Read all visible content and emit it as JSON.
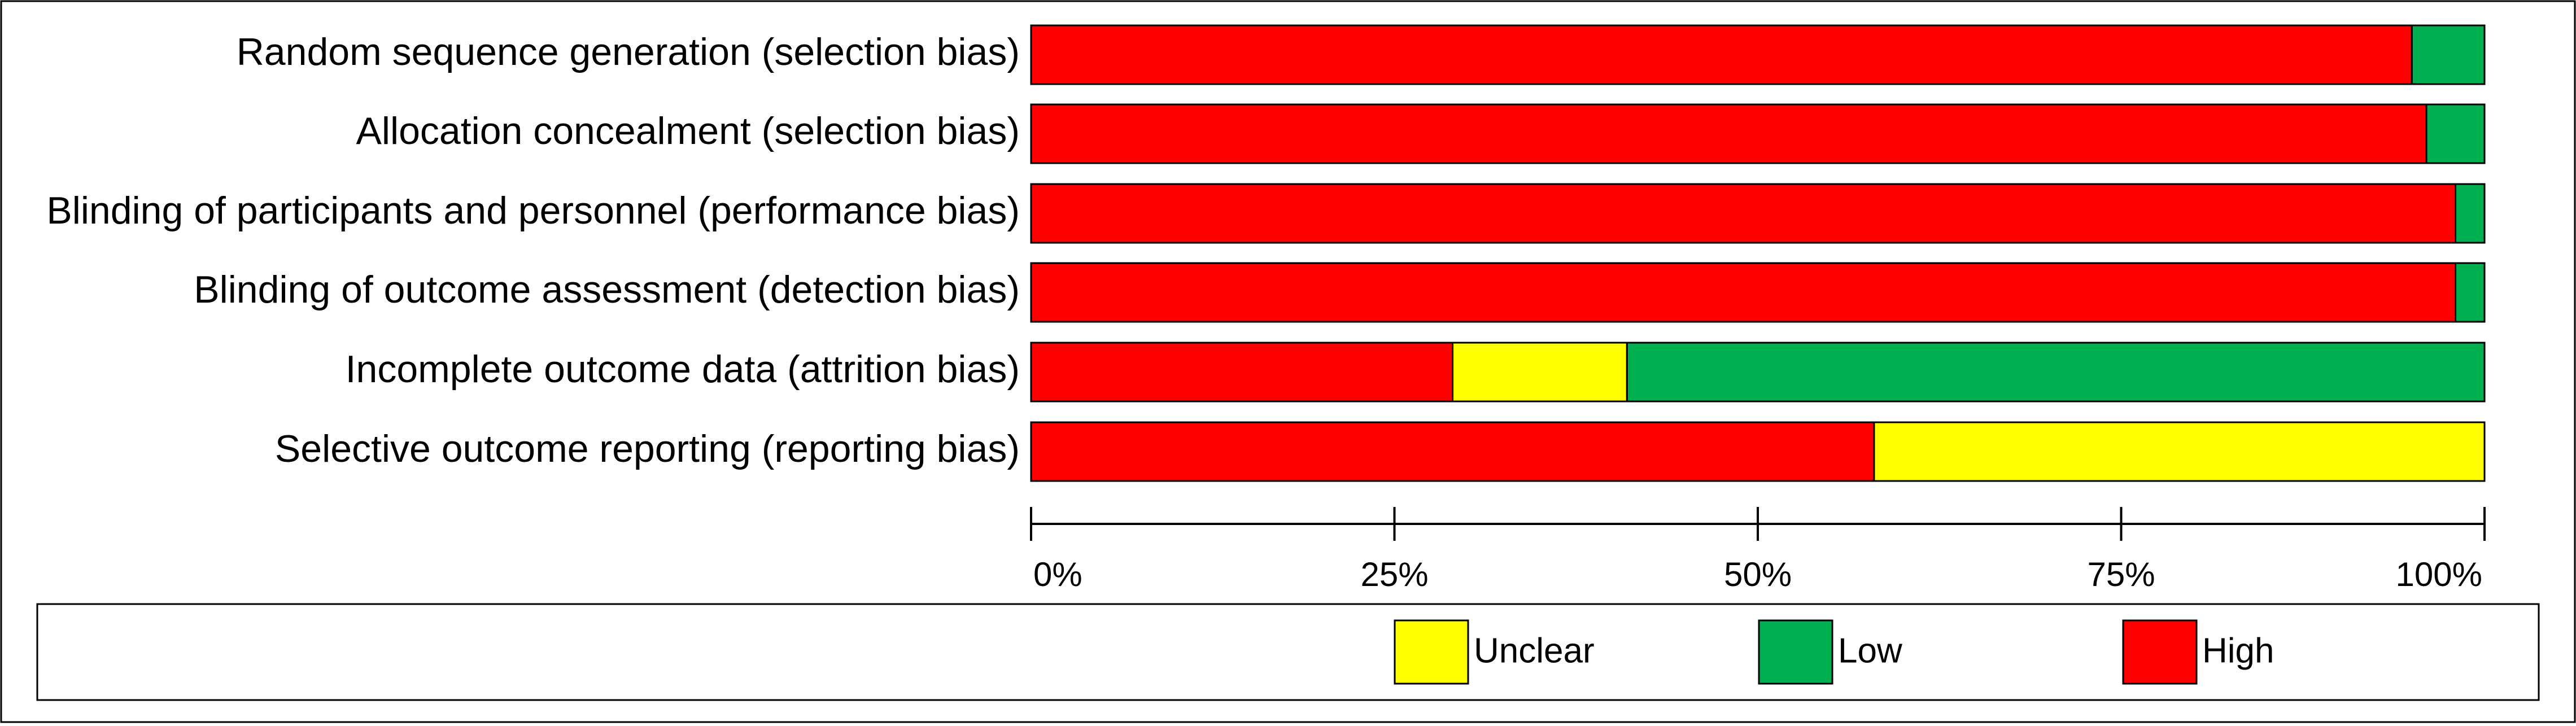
{
  "chart_data": {
    "type": "bar",
    "orientation": "horizontal",
    "stacked": true,
    "categories": [
      "Random sequence generation (selection bias)",
      "Allocation concealment (selection bias)",
      "Blinding of participants and personnel (performance bias)",
      "Blinding of outcome assessment (detection bias)",
      "Incomplete outcome data (attrition bias)",
      "Selective outcome reporting (reporting bias)"
    ],
    "series": [
      {
        "name": "High",
        "color": "#ff0000",
        "values": [
          95,
          96,
          98,
          98,
          29,
          58
        ]
      },
      {
        "name": "Unclear",
        "color": "#ffff00",
        "values": [
          0,
          0,
          0,
          0,
          12,
          42
        ]
      },
      {
        "name": "Low",
        "color": "#00b050",
        "values": [
          5,
          4,
          2,
          2,
          59,
          0
        ]
      }
    ],
    "xlim": [
      0,
      100
    ],
    "xticks": [
      "0%",
      "25%",
      "50%",
      "75%",
      "100%"
    ],
    "grid": false,
    "legend": {
      "placement": "bottom",
      "order": [
        "Unclear",
        "Low",
        "High"
      ]
    }
  }
}
